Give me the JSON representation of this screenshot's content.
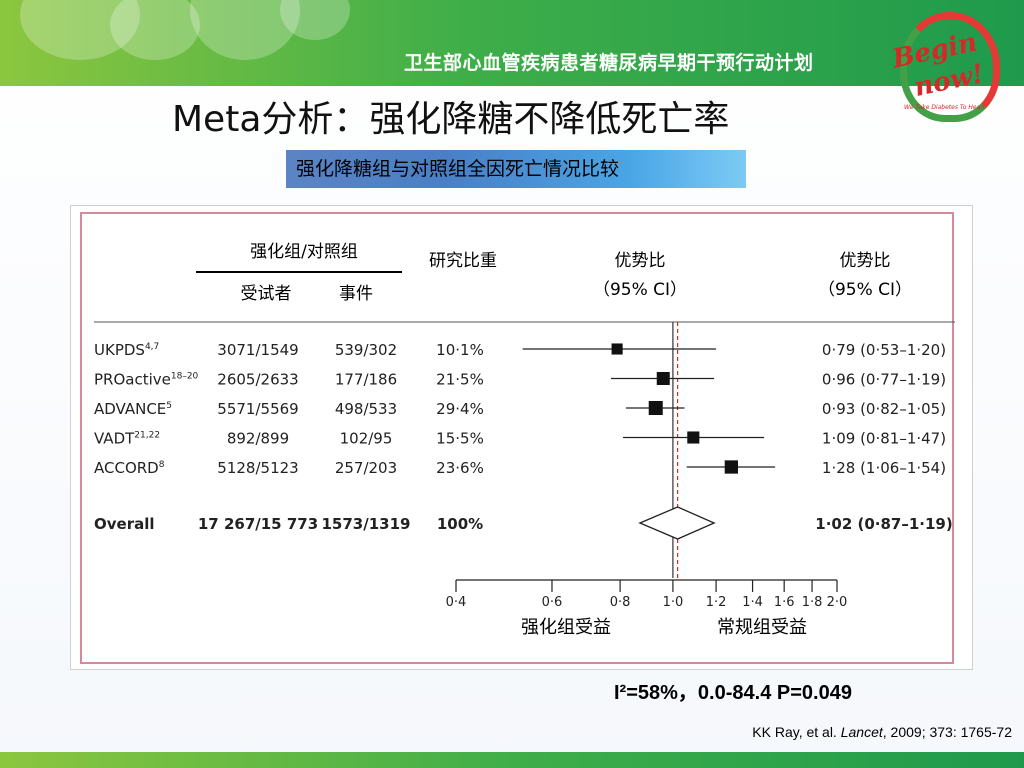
{
  "banner": {
    "title": "卫生部心血管疾病患者糖尿病早期干预行动计划"
  },
  "logo": {
    "text_line1": "Begin",
    "text_line2": "now!",
    "tagline": "We Take Diabetes To Heart"
  },
  "slide": {
    "title": "Meta分析：强化降糖不降低死亡率",
    "subtitle": "强化降糖组与对照组全因死亡情况比较"
  },
  "colors": {
    "banner_green": "#3fae49",
    "subtitle_blue": "#3a78c6",
    "panel_border": "#d48a9a",
    "reference_line": "#d62828"
  },
  "table": {
    "group_header": "强化组/对照组",
    "col_participants": "受试者",
    "col_events": "事件",
    "col_weight": "研究比重",
    "col_or_left_line1": "优势比",
    "col_or_left_line2": "（95% CI）",
    "col_or_right_line1": "优势比",
    "col_or_right_line2": "（95% CI）"
  },
  "chart_data": {
    "type": "forest",
    "x_axis": {
      "scale": "log",
      "ticks": [
        "0·4",
        "0·6",
        "0·8",
        "1·0",
        "1·2",
        "1·4",
        "1·6",
        "1·8",
        "2·0"
      ],
      "tick_values": [
        0.4,
        0.6,
        0.8,
        1.0,
        1.2,
        1.4,
        1.6,
        1.8,
        2.0
      ],
      "label_left": "强化组受益",
      "label_right": "常规组受益"
    },
    "studies": [
      {
        "name": "UKPDS",
        "sup": "4,7",
        "participants": "3071/1549",
        "events": "539/302",
        "weight": "10·1%",
        "or_text": "0·79 (0·53–1·20)",
        "or": 0.79,
        "lo": 0.53,
        "hi": 1.2
      },
      {
        "name": "PROactive",
        "sup": "18–20",
        "participants": "2605/2633",
        "events": "177/186",
        "weight": "21·5%",
        "or_text": "0·96 (0·77–1·19)",
        "or": 0.96,
        "lo": 0.77,
        "hi": 1.19
      },
      {
        "name": "ADVANCE",
        "sup": "5",
        "participants": "5571/5569",
        "events": "498/533",
        "weight": "29·4%",
        "or_text": "0·93 (0·82–1·05)",
        "or": 0.93,
        "lo": 0.82,
        "hi": 1.05
      },
      {
        "name": "VADT",
        "sup": "21,22",
        "participants": "892/899",
        "events": "102/95",
        "weight": "15·5%",
        "or_text": "1·09 (0·81–1·47)",
        "or": 1.09,
        "lo": 0.81,
        "hi": 1.47
      },
      {
        "name": "ACCORD",
        "sup": "8",
        "participants": "5128/5123",
        "events": "257/203",
        "weight": "23·6%",
        "or_text": "1·28 (1·06–1·54)",
        "or": 1.28,
        "lo": 1.06,
        "hi": 1.54
      }
    ],
    "overall": {
      "name": "Overall",
      "participants": "17 267/15 773",
      "events": "1573/1319",
      "weight": "100%",
      "or_text": "1·02 (0·87–1·19)",
      "or": 1.02,
      "lo": 0.87,
      "hi": 1.19
    },
    "heterogeneity": "I²=58%，0.0-84.4  P=0.049"
  },
  "citation": {
    "authors": "KK Ray, et al. ",
    "journal": "Lancet",
    "rest": ", 2009; 373: 1765-72"
  }
}
